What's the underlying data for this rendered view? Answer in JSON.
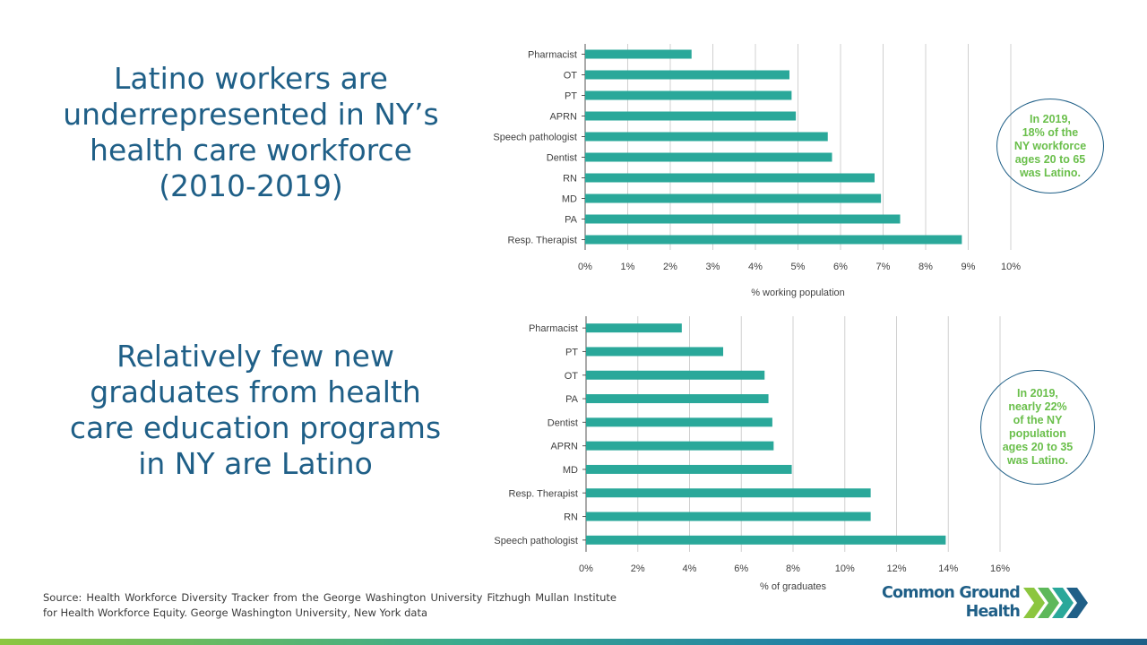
{
  "headlines": {
    "workforce": "Latino workers are underrepresented in NY’s health care workforce (2010-2019)",
    "graduates": "Relatively few new graduates from health care education programs in NY are Latino"
  },
  "callouts": {
    "workforce": [
      "In 2019,",
      "18% of the",
      "NY workforce",
      "ages 20 to 65",
      "was Latino."
    ],
    "graduates": [
      "In 2019,",
      "nearly 22%",
      "of the NY",
      "population",
      "ages 20 to 35",
      "was Latino."
    ]
  },
  "source": "Source: Health Workforce Diversity Tracker from the George Washington University Fitzhugh Mullan Institute for Health Workforce Equity. George Washington University, New York data",
  "logo": {
    "line1": "Common Ground",
    "line2": "Health"
  },
  "colors": {
    "bar": "#2aa89a",
    "grid": "#d0d0d0",
    "axis": "#555555",
    "headline": "#1f5f87",
    "callout_text": "#6abf4b",
    "logo_green": "#8cc63f",
    "logo_teal": "#2aa89a",
    "logo_blue": "#1f5f87"
  },
  "chart_data": [
    {
      "type": "bar",
      "orientation": "horizontal",
      "categories": [
        "Pharmacist",
        "OT",
        "PT",
        "APRN",
        "Speech pathologist",
        "Dentist",
        "RN",
        "MD",
        "PA",
        "Resp. Therapist"
      ],
      "values": [
        2.5,
        4.8,
        4.85,
        4.95,
        5.7,
        5.8,
        6.8,
        6.95,
        7.4,
        8.85
      ],
      "xlim": [
        0,
        10
      ],
      "ticks": [
        0,
        1,
        2,
        3,
        4,
        5,
        6,
        7,
        8,
        9,
        10
      ],
      "tick_labels": [
        "0%",
        "1%",
        "2%",
        "3%",
        "4%",
        "5%",
        "6%",
        "7%",
        "8%",
        "9%",
        "10%"
      ],
      "xlabel": "% working population",
      "ylabel": "",
      "grid": true
    },
    {
      "type": "bar",
      "orientation": "horizontal",
      "categories": [
        "Pharmacist",
        "PT",
        "OT",
        "PA",
        "Dentist",
        "APRN",
        "MD",
        "Resp. Therapist",
        "RN",
        "Speech pathologist"
      ],
      "values": [
        3.7,
        5.3,
        6.9,
        7.05,
        7.2,
        7.25,
        7.95,
        11,
        11,
        13.9
      ],
      "xlim": [
        0,
        16
      ],
      "ticks": [
        0,
        2,
        4,
        6,
        8,
        10,
        12,
        14,
        16
      ],
      "tick_labels": [
        "0%",
        "2%",
        "4%",
        "6%",
        "8%",
        "10%",
        "12%",
        "14%",
        "16%"
      ],
      "xlabel": "% of graduates",
      "ylabel": "",
      "grid": true
    }
  ]
}
